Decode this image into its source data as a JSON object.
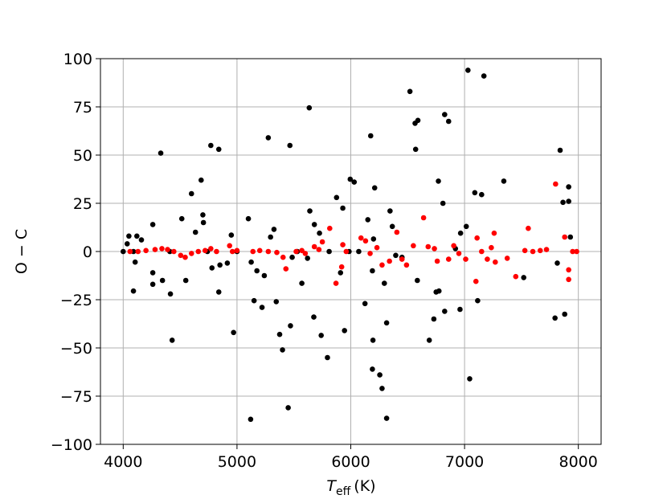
{
  "chart_data": {
    "type": "scatter",
    "xlabel": {
      "symbol": "T",
      "sub": "eff",
      "unit": "(K)"
    },
    "ylabel": "O − C",
    "xlim": [
      3800,
      8200
    ],
    "ylim": [
      -100,
      100
    ],
    "xticks": [
      4000,
      5000,
      6000,
      7000,
      8000
    ],
    "yticks": [
      {
        "value": -100,
        "label": "−100"
      },
      {
        "value": -75,
        "label": "−75"
      },
      {
        "value": -50,
        "label": "−50"
      },
      {
        "value": -25,
        "label": "−25"
      },
      0,
      25,
      50,
      75,
      100
    ],
    "grid": true,
    "series": [
      {
        "color": "#000000",
        "x": [
          4000,
          4035,
          4050,
          4090,
          4090,
          4105,
          4120,
          4160,
          4260,
          4260,
          4260,
          4330,
          4345,
          4410,
          4415,
          4430,
          4515,
          4550,
          4600,
          4635,
          4685,
          4700,
          4705,
          4740,
          4770,
          4780,
          4840,
          4840,
          4850,
          4915,
          4950,
          4970,
          5000,
          5100,
          5120,
          5125,
          5150,
          5175,
          5220,
          5240,
          5275,
          5295,
          5325,
          5345,
          5375,
          5400,
          5450,
          5465,
          5470,
          5485,
          5530,
          5570,
          5620,
          5635,
          5640,
          5675,
          5680,
          5725,
          5740,
          5795,
          5810,
          5875,
          5910,
          5930,
          5945,
          5985,
          5995,
          6030,
          6070,
          6125,
          6150,
          6175,
          6190,
          6190,
          6195,
          6200,
          6210,
          6255,
          6275,
          6295,
          6315,
          6315,
          6345,
          6365,
          6395,
          6450,
          6520,
          6565,
          6570,
          6590,
          6585,
          6690,
          6730,
          6750,
          6770,
          6775,
          6810,
          6825,
          6825,
          6860,
          6920,
          6960,
          6965,
          7015,
          7030,
          7045,
          7090,
          7115,
          7150,
          7170,
          7345,
          7520,
          7795,
          7815,
          7840,
          7865,
          7880,
          7915,
          7915,
          7930
        ],
        "values": [
          0,
          4,
          8,
          0,
          -20.5,
          -5.5,
          8,
          6,
          14,
          -11,
          -17,
          51,
          -15,
          0,
          -22,
          -46,
          17,
          -15,
          30,
          10,
          37,
          19,
          15,
          0,
          55,
          -8.5,
          53,
          -21,
          -7,
          -6,
          8.5,
          -42,
          0,
          17,
          -87,
          -5.5,
          -25.5,
          -10,
          -29,
          -12.5,
          59,
          7.5,
          11.5,
          -26,
          -43,
          -51,
          -81,
          55,
          -38.5,
          -3,
          0,
          -16.5,
          -3.5,
          74.5,
          21,
          -34,
          14,
          9.5,
          -43.5,
          -55,
          0,
          28,
          -11,
          22.5,
          -41,
          0,
          37.5,
          36,
          0,
          -27,
          16.5,
          60,
          -10,
          -61,
          -46,
          6.5,
          33,
          -64,
          -71,
          -16.5,
          -86.5,
          -37,
          21,
          13,
          -2,
          -3,
          83,
          66.5,
          53,
          68,
          -15,
          -46,
          -35,
          -21,
          36.5,
          -20.5,
          25,
          71,
          -31,
          67.5,
          1.5,
          -30,
          9.5,
          13,
          94,
          -66,
          30.5,
          -25.5,
          29.5,
          91,
          36.5,
          -13.5,
          -34.5,
          -6,
          52.5,
          25.5,
          -32.5,
          33.5,
          26,
          7.5
        ]
      },
      {
        "color": "#ff0000",
        "x": [
          4060,
          4130,
          4200,
          4280,
          4340,
          4390,
          4445,
          4505,
          4545,
          4600,
          4660,
          4720,
          4770,
          4820,
          4935,
          4960,
          5000,
          5140,
          5200,
          5275,
          5350,
          5405,
          5430,
          5520,
          5570,
          5600,
          5680,
          5720,
          5750,
          5815,
          5870,
          5920,
          5930,
          5960,
          6090,
          6130,
          6170,
          6230,
          6275,
          6340,
          6405,
          6450,
          6490,
          6550,
          6640,
          6680,
          6735,
          6760,
          6860,
          6905,
          6950,
          7010,
          7100,
          7110,
          7150,
          7200,
          7235,
          7260,
          7270,
          7375,
          7450,
          7530,
          7560,
          7600,
          7665,
          7720,
          7800,
          7880,
          7915,
          7915,
          7950,
          7985
        ],
        "values": [
          0,
          0,
          0.5,
          1,
          1.5,
          1,
          0,
          -2,
          -3,
          -1,
          0,
          0.5,
          1.5,
          0,
          3,
          0,
          0.5,
          0,
          0.5,
          0,
          -0.5,
          -3,
          -9,
          0,
          0.5,
          -1,
          2.5,
          1,
          5,
          12,
          -16.5,
          -8,
          3.5,
          0,
          7,
          5.5,
          -1,
          2,
          -7,
          -5,
          10,
          -4,
          -7,
          3,
          17.5,
          2.5,
          1.5,
          -5,
          -4,
          3,
          -1,
          -4,
          -15.5,
          7,
          0,
          -4,
          2,
          9.5,
          -5.5,
          -3.5,
          -13,
          0.5,
          12,
          0,
          0.5,
          1,
          35,
          7.5,
          -9.5,
          -14.5,
          0,
          0
        ]
      }
    ]
  }
}
